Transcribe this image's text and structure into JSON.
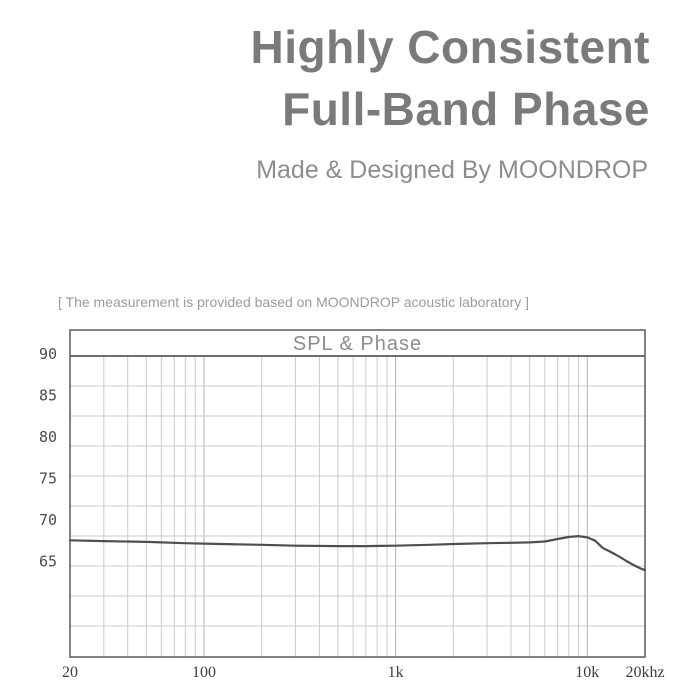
{
  "header": {
    "title_line1": "Highly Consistent",
    "title_line2": "Full-Band Phase",
    "subtitle": "Made & Designed By MOONDROP"
  },
  "note": {
    "text": "[ The measurement is provided based on MOONDROP acoustic laboratory ]"
  },
  "colors": {
    "frame": "#5a5a5a",
    "grid_minor": "#cbcbcb",
    "grid_decade": "#b3b3b3",
    "curve": "#4f4f4f",
    "title_text": "#7a7a7a",
    "subtitle_text": "#8d8d8d",
    "note_text": "#9b9b9b"
  },
  "chart_data": {
    "type": "line",
    "title": "SPL & Phase",
    "x_scale": "log",
    "x_unit": "Hz",
    "x_range": [
      20,
      20000
    ],
    "x_tick_values": [
      20,
      100,
      1000,
      10000,
      20000
    ],
    "x_tick_labels": [
      "20",
      "100",
      "1k",
      "10k",
      "20khz"
    ],
    "x_minor_gridlines": [
      30,
      40,
      50,
      60,
      70,
      80,
      90,
      100,
      200,
      300,
      400,
      500,
      600,
      700,
      800,
      900,
      1000,
      2000,
      3000,
      4000,
      5000,
      6000,
      7000,
      8000,
      9000,
      10000
    ],
    "x_decade_gridlines": [
      100,
      1000,
      10000
    ],
    "y_axis_labels": [
      "90",
      "85",
      "80",
      "75",
      "70",
      "65"
    ],
    "y_labeled_range": [
      65,
      90
    ],
    "grid": true,
    "legend": "none",
    "series": [
      {
        "name": "SPL",
        "x": [
          20,
          30,
          50,
          80,
          100,
          150,
          200,
          300,
          500,
          700,
          1000,
          1500,
          2000,
          3000,
          4000,
          5000,
          6000,
          7000,
          8000,
          9000,
          10000,
          11000,
          12000,
          13000,
          14000,
          15000,
          16000,
          17000,
          18000,
          19000,
          20000
        ],
        "y": [
          68.4,
          68.3,
          68.2,
          68.05,
          68.0,
          67.9,
          67.85,
          67.75,
          67.7,
          67.7,
          67.75,
          67.85,
          67.95,
          68.05,
          68.1,
          68.15,
          68.25,
          68.55,
          68.8,
          68.9,
          68.75,
          68.35,
          67.5,
          67.1,
          66.7,
          66.3,
          65.9,
          65.55,
          65.25,
          65.0,
          64.8
        ]
      }
    ]
  }
}
